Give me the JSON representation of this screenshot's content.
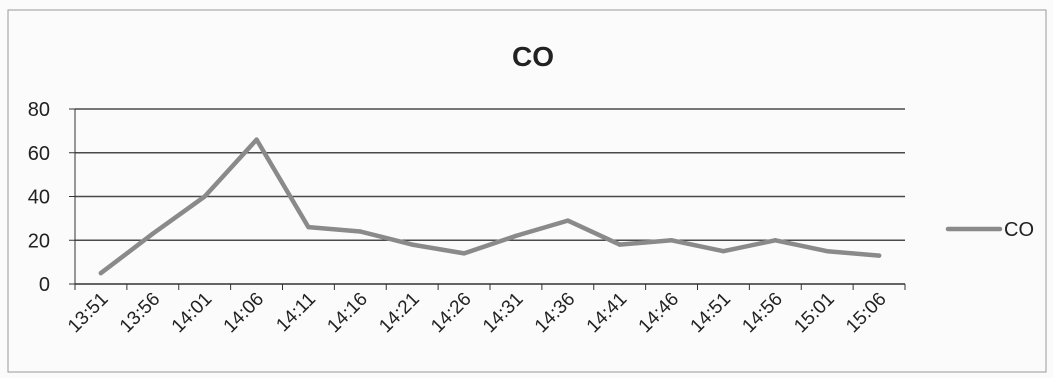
{
  "chart_data": {
    "type": "line",
    "title": "CO",
    "xlabel": "",
    "ylabel": "",
    "categories": [
      "13:51",
      "13:56",
      "14:01",
      "14:06",
      "14:11",
      "14:16",
      "14:21",
      "14:26",
      "14:31",
      "14:36",
      "14:41",
      "14:46",
      "14:51",
      "14:56",
      "15:01",
      "15:06"
    ],
    "series": [
      {
        "name": "CO",
        "values": [
          5,
          23,
          40,
          66,
          26,
          24,
          18,
          14,
          22,
          29,
          18,
          20,
          15,
          20,
          15,
          13
        ]
      }
    ],
    "ylim": [
      0,
      80
    ],
    "yticks": [
      "0",
      "20",
      "40",
      "60",
      "80"
    ],
    "grid": "horizontal",
    "legend": "right",
    "colors": {
      "series": "#8a8a8a",
      "grid": "#4a4a4a",
      "axis": "#333333",
      "background": "#fbfbfb"
    }
  }
}
